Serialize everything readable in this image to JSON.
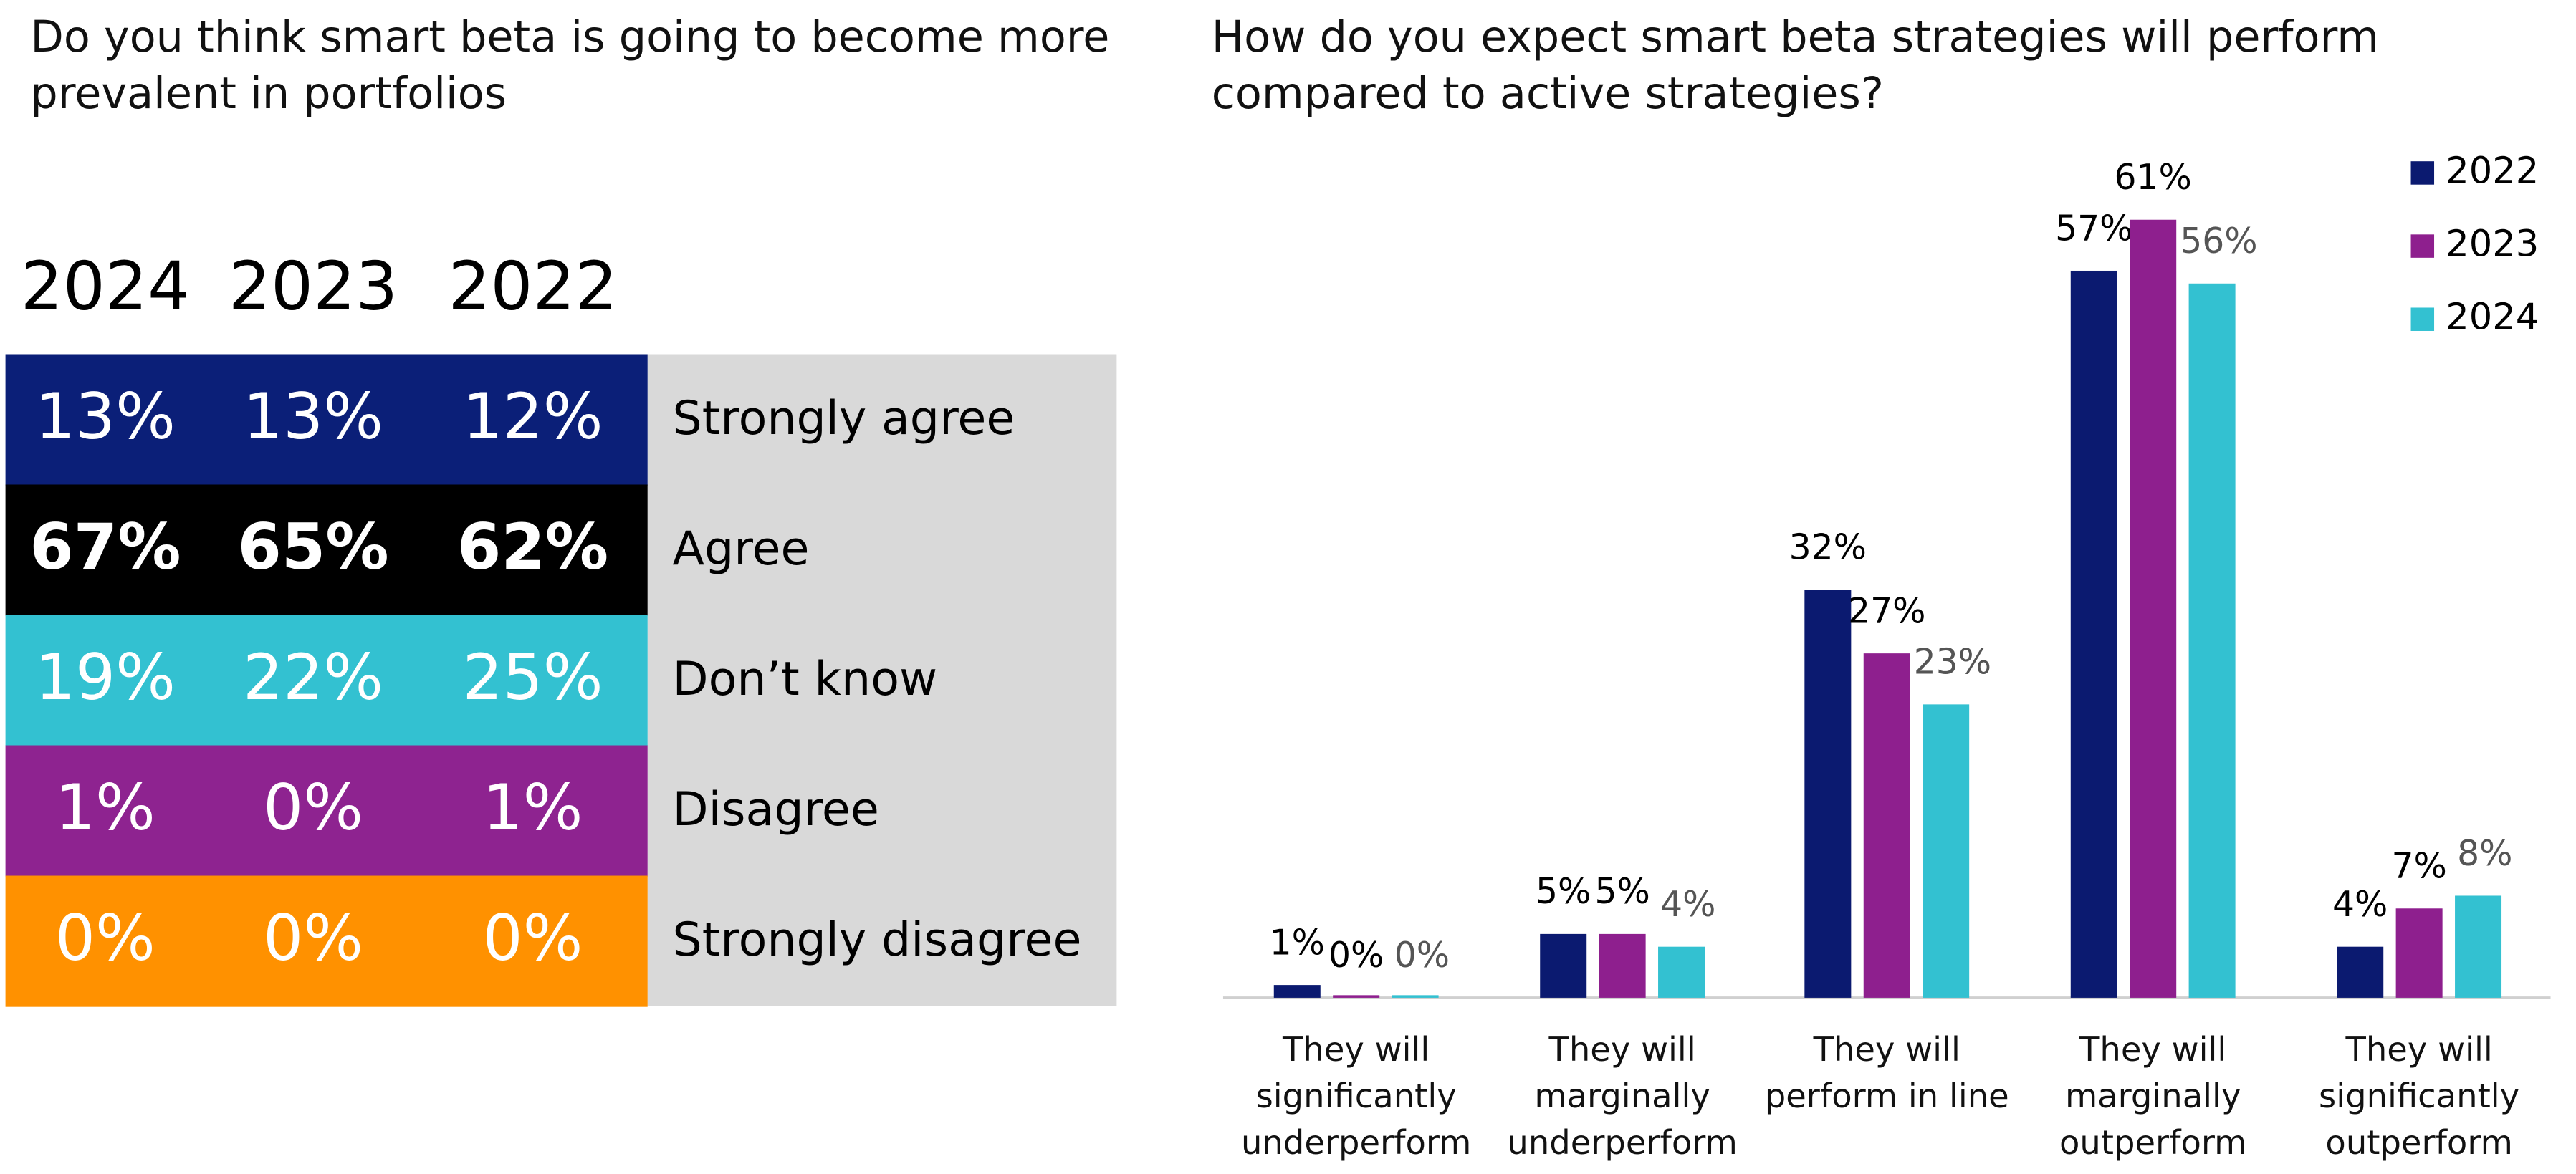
{
  "table": {
    "title": "Do you think smart beta is going to become more prevalent in portfolios",
    "columns": [
      "2024",
      "2023",
      "2022"
    ],
    "rows": [
      {
        "label": "Strongly agree",
        "color": "#0b1f78",
        "values": [
          "13%",
          "13%",
          "12%"
        ]
      },
      {
        "label": "Agree",
        "color": "#000000",
        "values": [
          "67%",
          "65%",
          "62%"
        ]
      },
      {
        "label": "Don’t know",
        "color": "#33c1d1",
        "values": [
          "19%",
          "22%",
          "25%"
        ]
      },
      {
        "label": "Disagree",
        "color": "#8e2390",
        "values": [
          "1%",
          "0%",
          "1%"
        ]
      },
      {
        "label": "Strongly disagree",
        "color": "#ff9100",
        "values": [
          "0%",
          "0%",
          "0%"
        ]
      }
    ]
  },
  "chart_data": {
    "type": "bar",
    "title": "How do you expect smart beta strategies will perform compared to active strategies?",
    "categories": [
      "They will significantly underperform",
      "They will marginally underperform",
      "They will perform in line",
      "They will marginally outperform",
      "They will significantly outperform"
    ],
    "series": [
      {
        "name": "2022",
        "color": "#0b1a70",
        "values": [
          1,
          5,
          32,
          57,
          4
        ],
        "value_labels": [
          "1%",
          "5%",
          "32%",
          "57%",
          "4%"
        ]
      },
      {
        "name": "2023",
        "color": "#8e1f8e",
        "values": [
          0,
          5,
          27,
          61,
          7
        ],
        "value_labels": [
          "0%",
          "5%",
          "27%",
          "61%",
          "7%"
        ]
      },
      {
        "name": "2024",
        "color": "#33c1d1",
        "values": [
          0,
          4,
          23,
          56,
          8
        ],
        "value_labels": [
          "0%",
          "4%",
          "23%",
          "56%",
          "8%"
        ]
      }
    ],
    "legend": "top-right"
  }
}
